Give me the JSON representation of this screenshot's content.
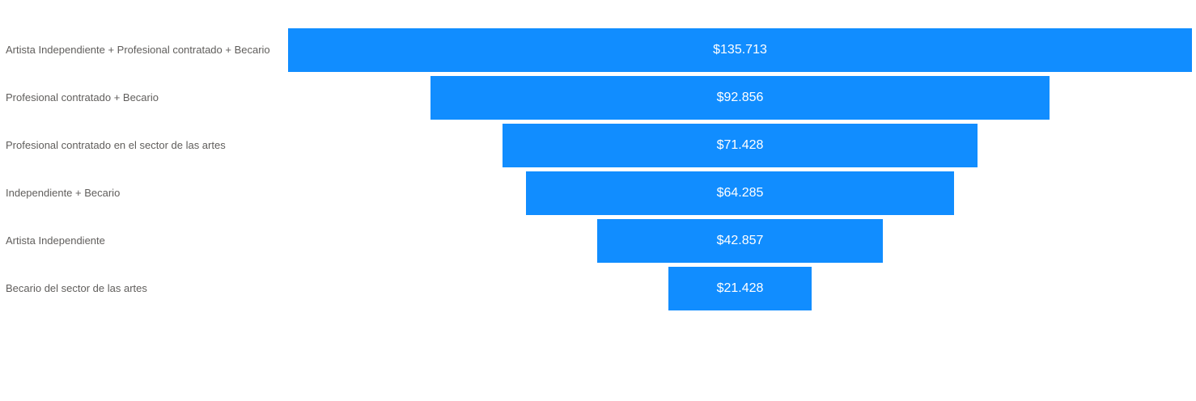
{
  "chart_data": {
    "type": "funnel",
    "title": "",
    "categories": [
      "Artista Independiente + Profesional contratado + Becario",
      "Profesional contratado + Becario",
      "Profesional contratado en el sector de las artes",
      "Independiente + Becario",
      "Artista Independiente",
      "Becario del sector de las artes"
    ],
    "values": [
      135713,
      92856,
      71428,
      64285,
      42857,
      21428
    ],
    "value_labels": [
      "$135.713",
      "$92.856",
      "$71.428",
      "$64.285",
      "$42.857",
      "$21.428"
    ],
    "value_format": "currency-dollar-dot-thousands",
    "orientation": "horizontal-centered",
    "legend": "none",
    "grid": false,
    "colors": {
      "bar": "#118DFF",
      "category_label": "#605E5C",
      "value_label": "#FFFFFF",
      "background": "#FFFFFF"
    }
  }
}
